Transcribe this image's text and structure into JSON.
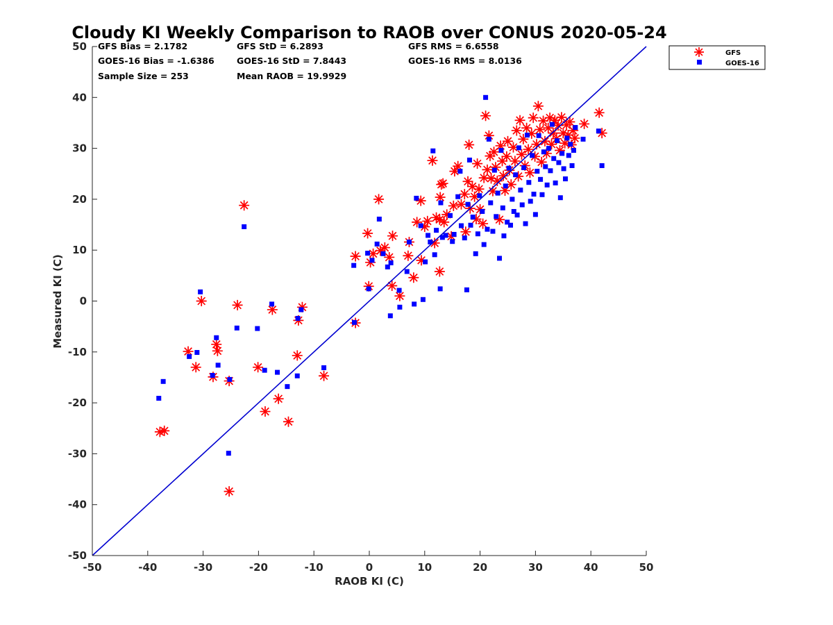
{
  "chart_data": {
    "type": "scatter",
    "title": "Cloudy KI Weekly Comparison to RAOB over CONUS 2020-05-24",
    "xlabel": "RAOB KI (C)",
    "ylabel": "Measured KI (C)",
    "xlim": [
      -50,
      50
    ],
    "ylim": [
      -50,
      50
    ],
    "xticks": [
      -50,
      -40,
      -30,
      -20,
      -10,
      0,
      10,
      20,
      30,
      40,
      50
    ],
    "yticks": [
      -50,
      -40,
      -30,
      -20,
      -10,
      0,
      10,
      20,
      30,
      40,
      50
    ],
    "grid": false,
    "legend_position": "top-right, outside plot",
    "reference_line": {
      "label": "1:1 line",
      "from": [
        -50,
        -50
      ],
      "to": [
        50,
        50
      ],
      "color": "#0000d0"
    },
    "stats": [
      [
        "GFS Bias = 2.1782",
        "GFS StD = 6.2893",
        "GFS RMS = 6.6558"
      ],
      [
        "GOES-16 Bias = -1.6386",
        "GOES-16 StD = 7.8443",
        "GOES-16 RMS = 8.0136"
      ],
      [
        "Sample Size = 253",
        "Mean RAOB = 19.9929",
        ""
      ]
    ],
    "series": [
      {
        "name": "GFS",
        "marker": "asterisk",
        "color": "#ff0000",
        "points": [
          [
            -37.8,
            -25.7
          ],
          [
            -37,
            -25.5
          ],
          [
            -32.7,
            -9.9
          ],
          [
            -31.3,
            -13
          ],
          [
            -30.3,
            0
          ],
          [
            -28.2,
            -14.9
          ],
          [
            -27.6,
            -8.5
          ],
          [
            -27.4,
            -9.8
          ],
          [
            -25.3,
            -15.7
          ],
          [
            -25.3,
            -37.4
          ],
          [
            -23.8,
            -0.8
          ],
          [
            -22.6,
            18.8
          ],
          [
            -20.1,
            -13
          ],
          [
            -18.8,
            -21.7
          ],
          [
            -17.5,
            -1.7
          ],
          [
            -16.4,
            -19.2
          ],
          [
            -14.6,
            -23.7
          ],
          [
            -13,
            -10.7
          ],
          [
            -12.8,
            -3.8
          ],
          [
            -12.1,
            -1.2
          ],
          [
            -8.2,
            -14.7
          ],
          [
            -2.5,
            8.8
          ],
          [
            -2.5,
            -4.3
          ],
          [
            -0.3,
            13.3
          ],
          [
            -0.1,
            2.9
          ],
          [
            0.2,
            7.6
          ],
          [
            0.7,
            9.3
          ],
          [
            1.7,
            20
          ],
          [
            2,
            9.9
          ],
          [
            2.8,
            10.5
          ],
          [
            3.6,
            8.6
          ],
          [
            4.1,
            3
          ],
          [
            4.2,
            12.8
          ],
          [
            5.5,
            1
          ],
          [
            7,
            8.9
          ],
          [
            7.2,
            11.6
          ],
          [
            8,
            4.6
          ],
          [
            8.6,
            15.5
          ],
          [
            9.3,
            19.7
          ],
          [
            9.4,
            8
          ],
          [
            10,
            14.6
          ],
          [
            10.5,
            15.7
          ],
          [
            11.4,
            27.6
          ],
          [
            11.8,
            11.4
          ],
          [
            12.1,
            16.4
          ],
          [
            12.7,
            5.8
          ],
          [
            12.7,
            16
          ],
          [
            12.8,
            20.4
          ],
          [
            13,
            22.9
          ],
          [
            13.3,
            23.1
          ],
          [
            13.5,
            15.5
          ],
          [
            14,
            17
          ],
          [
            14.8,
            12.7
          ],
          [
            15.2,
            18.7
          ],
          [
            15.4,
            25.5
          ],
          [
            16,
            26.5
          ],
          [
            16.6,
            19
          ],
          [
            17.2,
            21
          ],
          [
            17.4,
            13.6
          ],
          [
            17.8,
            23.5
          ],
          [
            18,
            30.7
          ],
          [
            18.2,
            18.2
          ],
          [
            18.6,
            22.5
          ],
          [
            19,
            20.5
          ],
          [
            19.3,
            16.1
          ],
          [
            19.5,
            27
          ],
          [
            19.8,
            22
          ],
          [
            20,
            18
          ],
          [
            20.5,
            15.2
          ],
          [
            20.7,
            24.2
          ],
          [
            21,
            36.4
          ],
          [
            21.3,
            25.8
          ],
          [
            21.6,
            32.5
          ],
          [
            21.8,
            28.5
          ],
          [
            22,
            24.1
          ],
          [
            22.3,
            21.6
          ],
          [
            22.5,
            29.3
          ],
          [
            22.8,
            26.3
          ],
          [
            23.1,
            23.6
          ],
          [
            23.5,
            16
          ],
          [
            23.7,
            30.5
          ],
          [
            24,
            27.5
          ],
          [
            24.2,
            24.6
          ],
          [
            24.5,
            21.7
          ],
          [
            24.8,
            28.4
          ],
          [
            25,
            31.4
          ],
          [
            25.3,
            25.7
          ],
          [
            25.6,
            22.9
          ],
          [
            26,
            30.2
          ],
          [
            26.3,
            27.5
          ],
          [
            26.6,
            33.5
          ],
          [
            26.9,
            24.5
          ],
          [
            27.2,
            35.5
          ],
          [
            27.5,
            28.8
          ],
          [
            27.8,
            31.8
          ],
          [
            28.1,
            26.6
          ],
          [
            28.4,
            34
          ],
          [
            28.7,
            29.8
          ],
          [
            29,
            25.2
          ],
          [
            29.3,
            32.9
          ],
          [
            29.6,
            36
          ],
          [
            29.9,
            28.4
          ],
          [
            30.2,
            30.8
          ],
          [
            30.5,
            38.3
          ],
          [
            30.8,
            33.7
          ],
          [
            31.1,
            27.3
          ],
          [
            31.4,
            35.4
          ],
          [
            31.7,
            31.4
          ],
          [
            32,
            29
          ],
          [
            32.3,
            34
          ],
          [
            32.6,
            36
          ],
          [
            32.9,
            30.8
          ],
          [
            33.2,
            33
          ],
          [
            33.5,
            35.5
          ],
          [
            33.8,
            31.9
          ],
          [
            34.1,
            34.5
          ],
          [
            34.4,
            29.6
          ],
          [
            34.7,
            36.1
          ],
          [
            35,
            33
          ],
          [
            35.3,
            31
          ],
          [
            35.6,
            34.6
          ],
          [
            35.9,
            32.6
          ],
          [
            36.2,
            35.2
          ],
          [
            36.5,
            30.7
          ],
          [
            36.8,
            33.5
          ],
          [
            37.1,
            32
          ],
          [
            38.8,
            34.8
          ],
          [
            41.5,
            37
          ],
          [
            42,
            33
          ]
        ]
      },
      {
        "name": "GOES-16",
        "marker": "square",
        "color": "#0000ff",
        "points": [
          [
            -38,
            -19.1
          ],
          [
            -37.2,
            -15.8
          ],
          [
            -32.5,
            -10.9
          ],
          [
            -31.1,
            -10.1
          ],
          [
            -30.5,
            1.8
          ],
          [
            -28.3,
            -14.6
          ],
          [
            -27.6,
            -7.2
          ],
          [
            -27.3,
            -12.6
          ],
          [
            -25.2,
            -15.4
          ],
          [
            -25.4,
            -29.9
          ],
          [
            -23.9,
            -5.3
          ],
          [
            -22.6,
            14.6
          ],
          [
            -20.2,
            -5.4
          ],
          [
            -18.9,
            -13.6
          ],
          [
            -17.6,
            -0.6
          ],
          [
            -16.6,
            -14
          ],
          [
            -14.8,
            -16.8
          ],
          [
            -13,
            -14.7
          ],
          [
            -12.9,
            -3.4
          ],
          [
            -12.3,
            -1.7
          ],
          [
            -8.2,
            -13.1
          ],
          [
            -2.8,
            7
          ],
          [
            -2.7,
            -4.2
          ],
          [
            -0.3,
            9.4
          ],
          [
            -0.1,
            2.4
          ],
          [
            0.5,
            8
          ],
          [
            1.4,
            11.2
          ],
          [
            1.8,
            16.1
          ],
          [
            2.5,
            9.3
          ],
          [
            3.3,
            6.7
          ],
          [
            3.9,
            7.5
          ],
          [
            3.8,
            -2.9
          ],
          [
            5.5,
            -1.2
          ],
          [
            5.4,
            2.1
          ],
          [
            6.8,
            5.8
          ],
          [
            7.2,
            11.6
          ],
          [
            8.1,
            -0.6
          ],
          [
            8.5,
            20.2
          ],
          [
            9.3,
            14.8
          ],
          [
            9.7,
            0.3
          ],
          [
            10.1,
            7.7
          ],
          [
            10.6,
            12.9
          ],
          [
            11,
            11.6
          ],
          [
            11.5,
            29.5
          ],
          [
            11.8,
            9.1
          ],
          [
            12.1,
            13.9
          ],
          [
            12.8,
            2.4
          ],
          [
            12.9,
            19.3
          ],
          [
            13.2,
            12.5
          ],
          [
            13.8,
            12.9
          ],
          [
            14.6,
            16.8
          ],
          [
            15,
            11.7
          ],
          [
            15.3,
            13.1
          ],
          [
            16,
            20.5
          ],
          [
            16.4,
            25.5
          ],
          [
            16.6,
            14.8
          ],
          [
            17.2,
            12.4
          ],
          [
            17.6,
            2.2
          ],
          [
            17.8,
            19
          ],
          [
            18.1,
            27.7
          ],
          [
            18.3,
            14.9
          ],
          [
            18.7,
            16.5
          ],
          [
            19.2,
            9.3
          ],
          [
            19.6,
            13.2
          ],
          [
            19.9,
            20.7
          ],
          [
            20.4,
            17.6
          ],
          [
            20.7,
            11.1
          ],
          [
            21,
            40
          ],
          [
            21.3,
            14.1
          ],
          [
            21.6,
            31.8
          ],
          [
            21.9,
            19.3
          ],
          [
            22.3,
            13.7
          ],
          [
            22.6,
            25.7
          ],
          [
            22.9,
            16.6
          ],
          [
            23.2,
            21.2
          ],
          [
            23.5,
            8.4
          ],
          [
            23.8,
            29.6
          ],
          [
            24.1,
            18.3
          ],
          [
            24.3,
            12.8
          ],
          [
            24.6,
            22.6
          ],
          [
            24.9,
            15.5
          ],
          [
            25.2,
            26.1
          ],
          [
            25.5,
            14.9
          ],
          [
            25.8,
            20
          ],
          [
            26.1,
            17.6
          ],
          [
            26.4,
            24.8
          ],
          [
            26.7,
            16.9
          ],
          [
            27,
            30.1
          ],
          [
            27.3,
            21.8
          ],
          [
            27.6,
            18.9
          ],
          [
            27.9,
            26.2
          ],
          [
            28.2,
            15.2
          ],
          [
            28.5,
            32.6
          ],
          [
            28.8,
            23.3
          ],
          [
            29.1,
            19.6
          ],
          [
            29.4,
            28.6
          ],
          [
            29.7,
            21
          ],
          [
            30,
            17
          ],
          [
            30.3,
            25.5
          ],
          [
            30.6,
            32.5
          ],
          [
            30.9,
            23.9
          ],
          [
            31.2,
            20.9
          ],
          [
            31.5,
            29.3
          ],
          [
            31.8,
            26.4
          ],
          [
            32.1,
            22.8
          ],
          [
            32.4,
            30
          ],
          [
            32.7,
            25.6
          ],
          [
            33,
            34.7
          ],
          [
            33.3,
            28
          ],
          [
            33.6,
            23.2
          ],
          [
            33.9,
            31.5
          ],
          [
            34.2,
            27.2
          ],
          [
            34.5,
            20.3
          ],
          [
            34.8,
            29
          ],
          [
            35.1,
            26
          ],
          [
            35.4,
            24
          ],
          [
            35.7,
            32
          ],
          [
            36,
            28.6
          ],
          [
            36.3,
            30.8
          ],
          [
            36.6,
            26.6
          ],
          [
            36.9,
            29.6
          ],
          [
            37.2,
            34.1
          ],
          [
            38.6,
            31.8
          ],
          [
            41.4,
            33.4
          ],
          [
            42,
            26.6
          ]
        ]
      }
    ]
  }
}
